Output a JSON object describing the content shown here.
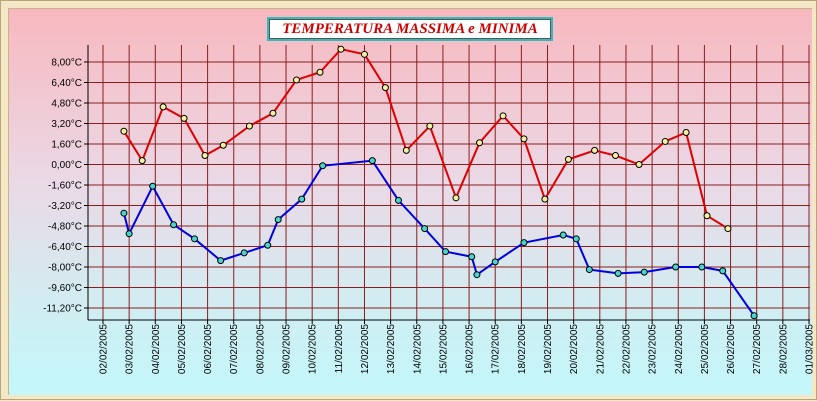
{
  "chart_data": {
    "type": "line",
    "title": "TEMPERATURA MASSIMA e MINIMA",
    "xlabel": "",
    "ylabel": "",
    "x_tick_labels": [
      "02/02/2005",
      "03/02/2005",
      "04/02/2005",
      "05/02/2005",
      "06/02/2005",
      "07/02/2005",
      "08/02/2005",
      "09/02/2005",
      "10/02/2005",
      "11/02/2005",
      "12/02/2005",
      "13/02/2005",
      "14/02/2005",
      "15/02/2005",
      "16/02/2005",
      "17/02/2005",
      "18/02/2005",
      "19/02/2005",
      "20/02/2005",
      "21/02/2005",
      "22/02/2005",
      "23/02/2005",
      "24/02/2005",
      "25/02/2005",
      "26/02/2005",
      "27/02/2005",
      "28/02/2005",
      "01/03/2005"
    ],
    "y_tick_labels": [
      "8,00°C",
      "6,40°C",
      "4,80°C",
      "3,20°C",
      "1,60°C",
      "0,00°C",
      "-1,60°C",
      "-3,20°C",
      "-4,80°C",
      "-6,40°C",
      "-8,00°C",
      "-9,60°C",
      "-11,20°C"
    ],
    "ylim": [
      -12.2,
      9.2
    ],
    "xlim_days": [
      1,
      28.2
    ],
    "grid": true,
    "series": [
      {
        "color": "#e00000",
        "points": [
          [
            0.8,
            2.6
          ],
          [
            1.5,
            0.3
          ],
          [
            2.3,
            4.5
          ],
          [
            3.1,
            3.6
          ],
          [
            3.9,
            0.7
          ],
          [
            4.6,
            1.5
          ],
          [
            5.6,
            3.0
          ],
          [
            6.5,
            4.0
          ],
          [
            7.4,
            6.6
          ],
          [
            8.3,
            7.2
          ],
          [
            9.1,
            9.0
          ],
          [
            10.0,
            8.6
          ],
          [
            10.8,
            6.0
          ],
          [
            11.6,
            1.1
          ],
          [
            12.5,
            3.0
          ],
          [
            13.5,
            -2.6
          ],
          [
            14.4,
            1.7
          ],
          [
            15.3,
            3.8
          ],
          [
            16.1,
            2.0
          ],
          [
            16.9,
            -2.7
          ],
          [
            17.8,
            0.4
          ],
          [
            18.8,
            1.1
          ],
          [
            19.6,
            0.7
          ],
          [
            20.5,
            0.0
          ],
          [
            21.5,
            1.8
          ],
          [
            22.3,
            2.5
          ],
          [
            23.1,
            -4.0
          ],
          [
            23.9,
            -5.0
          ]
        ]
      },
      {
        "color": "#0000e0",
        "points": [
          [
            0.8,
            -3.8
          ],
          [
            1.0,
            -5.4
          ],
          [
            1.9,
            -1.7
          ],
          [
            2.7,
            -4.7
          ],
          [
            3.5,
            -5.8
          ],
          [
            4.5,
            -7.5
          ],
          [
            5.4,
            -6.9
          ],
          [
            6.3,
            -6.3
          ],
          [
            6.7,
            -4.3
          ],
          [
            7.6,
            -2.7
          ],
          [
            8.4,
            -0.1
          ],
          [
            10.3,
            0.3
          ],
          [
            11.3,
            -2.8
          ],
          [
            12.3,
            -5.0
          ],
          [
            13.1,
            -6.8
          ],
          [
            14.1,
            -7.2
          ],
          [
            14.3,
            -8.6
          ],
          [
            15.0,
            -7.6
          ],
          [
            16.1,
            -6.1
          ],
          [
            17.6,
            -5.5
          ],
          [
            18.1,
            -5.8
          ],
          [
            18.6,
            -8.2
          ],
          [
            19.7,
            -8.5
          ],
          [
            20.7,
            -8.4
          ],
          [
            21.9,
            -8.0
          ],
          [
            22.9,
            -8.0
          ],
          [
            23.7,
            -8.3
          ],
          [
            24.9,
            -11.8
          ]
        ]
      }
    ]
  }
}
